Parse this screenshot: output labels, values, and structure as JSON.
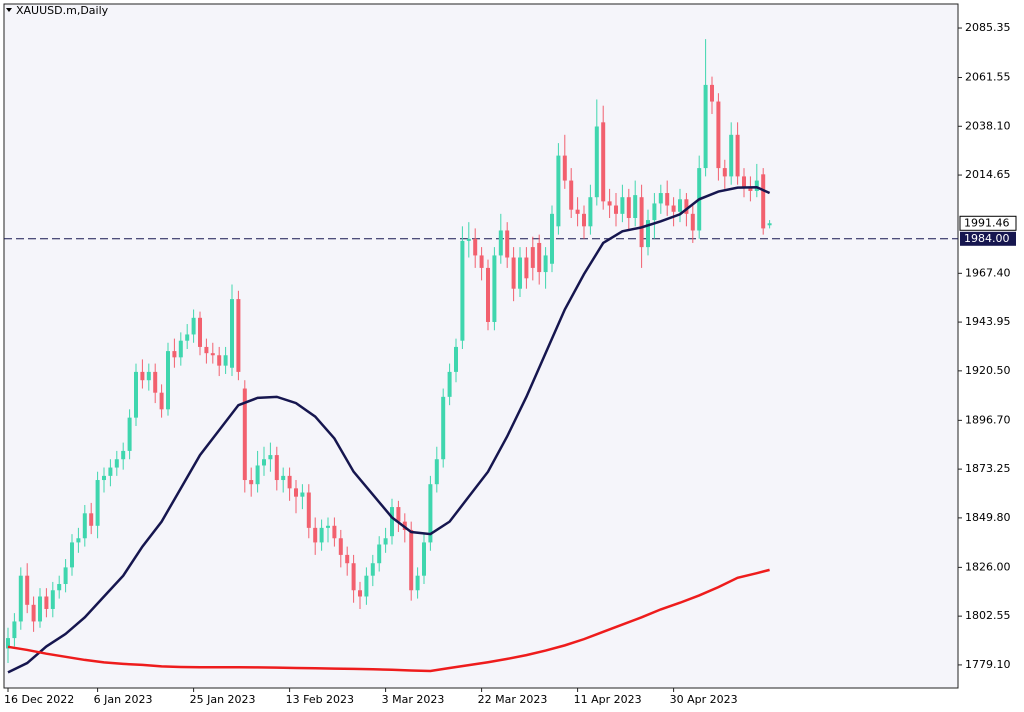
{
  "chart_data": {
    "type": "candlestick",
    "title": "XAUUSD.m,Daily",
    "categories": [
      "16 Dec 2022",
      null,
      null,
      null,
      null,
      null,
      null,
      null,
      null,
      null,
      null,
      null,
      null,
      null,
      "6 Jan 2023",
      null,
      null,
      null,
      null,
      null,
      null,
      null,
      null,
      null,
      null,
      null,
      null,
      null,
      null,
      "25 Jan 2023",
      null,
      null,
      null,
      null,
      null,
      null,
      null,
      null,
      null,
      null,
      null,
      null,
      null,
      null,
      "13 Feb 2023",
      null,
      null,
      null,
      null,
      null,
      null,
      null,
      null,
      null,
      null,
      null,
      null,
      null,
      null,
      "3 Mar 2023",
      null,
      null,
      null,
      null,
      null,
      null,
      null,
      null,
      null,
      null,
      null,
      null,
      null,
      null,
      "22 Mar 2023",
      null,
      null,
      null,
      null,
      null,
      null,
      null,
      null,
      null,
      null,
      null,
      null,
      null,
      null,
      "11 Apr 2023",
      null,
      null,
      null,
      null,
      null,
      null,
      null,
      null,
      null,
      null,
      null,
      null,
      null,
      null,
      "30 Apr 2023",
      null,
      null,
      null,
      null,
      null,
      null,
      null,
      null,
      null,
      null,
      null,
      null,
      null,
      null,
      null
    ],
    "ohlc": [
      [
        1787,
        1797,
        1780,
        1792
      ],
      [
        1792,
        1804,
        1788,
        1800
      ],
      [
        1800,
        1826,
        1796,
        1822
      ],
      [
        1822,
        1828,
        1804,
        1808
      ],
      [
        1808,
        1812,
        1795,
        1800
      ],
      [
        1800,
        1816,
        1797,
        1812
      ],
      [
        1812,
        1816,
        1802,
        1806
      ],
      [
        1806,
        1819,
        1802,
        1815
      ],
      [
        1815,
        1822,
        1811,
        1818
      ],
      [
        1818,
        1830,
        1814,
        1826
      ],
      [
        1826,
        1842,
        1822,
        1838
      ],
      [
        1838,
        1845,
        1833,
        1840
      ],
      [
        1840,
        1856,
        1836,
        1852
      ],
      [
        1852,
        1857,
        1842,
        1846
      ],
      [
        1846,
        1872,
        1840,
        1868
      ],
      [
        1868,
        1874,
        1862,
        1870
      ],
      [
        1870,
        1878,
        1865,
        1874
      ],
      [
        1874,
        1882,
        1870,
        1878
      ],
      [
        1878,
        1886,
        1873,
        1882
      ],
      [
        1882,
        1902,
        1878,
        1898
      ],
      [
        1898,
        1924,
        1894,
        1920
      ],
      [
        1920,
        1926,
        1912,
        1916
      ],
      [
        1916,
        1924,
        1911,
        1920
      ],
      [
        1920,
        1924,
        1905,
        1910
      ],
      [
        1910,
        1914,
        1898,
        1902
      ],
      [
        1902,
        1934,
        1899,
        1930
      ],
      [
        1930,
        1936,
        1922,
        1927
      ],
      [
        1927,
        1939,
        1923,
        1935
      ],
      [
        1935,
        1943,
        1931,
        1938
      ],
      [
        1938,
        1950,
        1934,
        1946
      ],
      [
        1946,
        1949,
        1928,
        1932
      ],
      [
        1932,
        1936,
        1924,
        1929
      ],
      [
        1929,
        1934,
        1924,
        1928
      ],
      [
        1928,
        1932,
        1918,
        1923
      ],
      [
        1923,
        1932,
        1919,
        1928
      ],
      [
        1922,
        1962,
        1918,
        1955
      ],
      [
        1955,
        1959,
        1916,
        1920
      ],
      [
        1912,
        1916,
        1862,
        1868
      ],
      [
        1868,
        1874,
        1860,
        1866
      ],
      [
        1866,
        1882,
        1862,
        1875
      ],
      [
        1875,
        1884,
        1870,
        1878
      ],
      [
        1878,
        1886,
        1872,
        1880
      ],
      [
        1880,
        1884,
        1863,
        1868
      ],
      [
        1868,
        1874,
        1862,
        1870
      ],
      [
        1870,
        1874,
        1858,
        1864
      ],
      [
        1864,
        1868,
        1852,
        1860
      ],
      [
        1860,
        1866,
        1854,
        1862
      ],
      [
        1862,
        1866,
        1840,
        1845
      ],
      [
        1845,
        1850,
        1832,
        1838
      ],
      [
        1838,
        1849,
        1834,
        1845
      ],
      [
        1845,
        1850,
        1838,
        1846
      ],
      [
        1846,
        1850,
        1836,
        1840
      ],
      [
        1840,
        1844,
        1826,
        1832
      ],
      [
        1832,
        1836,
        1822,
        1828
      ],
      [
        1828,
        1832,
        1809,
        1815
      ],
      [
        1815,
        1819,
        1806,
        1812
      ],
      [
        1812,
        1826,
        1808,
        1822
      ],
      [
        1822,
        1832,
        1817,
        1828
      ],
      [
        1828,
        1841,
        1824,
        1837
      ],
      [
        1837,
        1845,
        1833,
        1840
      ],
      [
        1841,
        1859,
        1837,
        1855
      ],
      [
        1855,
        1858,
        1843,
        1848
      ],
      [
        1848,
        1852,
        1838,
        1844
      ],
      [
        1844,
        1848,
        1810,
        1815
      ],
      [
        1815,
        1826,
        1811,
        1822
      ],
      [
        1822,
        1842,
        1818,
        1838
      ],
      [
        1838,
        1870,
        1834,
        1866
      ],
      [
        1866,
        1884,
        1862,
        1878
      ],
      [
        1878,
        1912,
        1874,
        1908
      ],
      [
        1908,
        1924,
        1904,
        1920
      ],
      [
        1920,
        1936,
        1915,
        1932
      ],
      [
        1935,
        1990,
        1931,
        1983
      ],
      [
        1983,
        1992,
        1975,
        1984
      ],
      [
        1984,
        1989,
        1970,
        1976
      ],
      [
        1976,
        1980,
        1964,
        1970
      ],
      [
        1970,
        1974,
        1940,
        1944
      ],
      [
        1944,
        1980,
        1940,
        1976
      ],
      [
        1976,
        1996,
        1972,
        1988
      ],
      [
        1988,
        1992,
        1970,
        1975
      ],
      [
        1975,
        1980,
        1954,
        1960
      ],
      [
        1960,
        1980,
        1956,
        1975
      ],
      [
        1975,
        1980,
        1960,
        1965
      ],
      [
        1980,
        1985,
        1964,
        1970
      ],
      [
        1982,
        1986,
        1962,
        1968
      ],
      [
        1968,
        1980,
        1960,
        1976
      ],
      [
        1972,
        2000,
        1968,
        1996
      ],
      [
        1990,
        2030,
        1986,
        2024
      ],
      [
        2024,
        2034,
        2008,
        2012
      ],
      [
        2012,
        2018,
        1994,
        1998
      ],
      [
        1998,
        2004,
        1990,
        1996
      ],
      [
        1996,
        2000,
        1984,
        1990
      ],
      [
        1990,
        2010,
        1986,
        2004
      ],
      [
        2004,
        2051,
        2000,
        2038
      ],
      [
        2040,
        2048,
        1998,
        2002
      ],
      [
        2002,
        2008,
        1994,
        2000
      ],
      [
        2000,
        2006,
        1990,
        1996
      ],
      [
        1996,
        2010,
        1992,
        2004
      ],
      [
        2004,
        2008,
        1988,
        1994
      ],
      [
        1994,
        2012,
        1990,
        2005
      ],
      [
        2004,
        2010,
        1970,
        1980
      ],
      [
        1980,
        1998,
        1976,
        1993
      ],
      [
        1993,
        2006,
        1984,
        2001
      ],
      [
        2001,
        2010,
        1996,
        2006
      ],
      [
        2006,
        2012,
        1995,
        2000
      ],
      [
        2000,
        2004,
        1990,
        1997
      ],
      [
        1997,
        2008,
        1992,
        2003
      ],
      [
        2003,
        2006,
        1990,
        1996
      ],
      [
        1996,
        2000,
        1982,
        1988
      ],
      [
        1988,
        2024,
        1984,
        2018
      ],
      [
        2018,
        2080,
        2014,
        2058
      ],
      [
        2058,
        2062,
        2044,
        2050
      ],
      [
        2050,
        2054,
        2012,
        2018
      ],
      [
        2018,
        2022,
        2008,
        2014
      ],
      [
        2014,
        2040,
        2010,
        2034
      ],
      [
        2034,
        2040,
        2010,
        2014
      ],
      [
        2014,
        2018,
        2004,
        2009
      ],
      [
        2009,
        2014,
        2002,
        2007
      ],
      [
        2007,
        2020,
        2004,
        2012
      ],
      [
        2015,
        2018,
        1986,
        1989
      ],
      [
        1990.5,
        1993,
        1989,
        1991.46
      ]
    ],
    "up_color": "#3fd6ae",
    "down_color": "#f2606e",
    "ma_x": [
      0,
      3,
      6,
      9,
      12,
      15,
      18,
      21,
      24,
      27,
      30,
      33,
      36,
      39,
      42,
      45,
      48,
      51,
      54,
      57,
      60,
      63,
      66,
      69,
      72,
      75,
      78,
      81,
      84,
      87,
      90,
      93,
      96,
      99,
      102,
      105,
      108,
      111,
      114,
      117,
      119
    ],
    "moving_averages": [
      {
        "color": "#16164f",
        "values": [
          1775.5,
          1780,
          1788,
          1794,
          1802,
          1812,
          1822,
          1836,
          1848,
          1864,
          1880,
          1892,
          1904,
          1907.5,
          1908,
          1905,
          1898.5,
          1888,
          1872,
          1861,
          1850,
          1843,
          1842,
          1848,
          1860,
          1872,
          1889,
          1908,
          1929,
          1950,
          1967,
          1982,
          1987.6,
          1989.5,
          1992.4,
          1995.8,
          2003,
          2006.7,
          2008.6,
          2008.8,
          2006
        ]
      },
      {
        "color": "#ee1c1c",
        "values": [
          1787.8,
          1786.3,
          1784.5,
          1783,
          1781.5,
          1780.3,
          1779.6,
          1779.1,
          1778.4,
          1778.1,
          1778,
          1778,
          1778,
          1777.9,
          1777.8,
          1777.6,
          1777.5,
          1777.3,
          1777.2,
          1777,
          1776.8,
          1776.4,
          1776.2,
          1777.6,
          1779,
          1780.4,
          1782,
          1783.8,
          1786,
          1788.5,
          1791.5,
          1795,
          1798.5,
          1802,
          1805.8,
          1809,
          1812.5,
          1816.5,
          1821,
          1823.2,
          1824.8
        ]
      }
    ],
    "hline": {
      "value": 1984,
      "label": "1984.00",
      "color": "#16164f"
    },
    "ylim": [
      1768.0,
      2096.9
    ],
    "yticks": [
      {
        "value": 1779.1,
        "label": "1779.10"
      },
      1802.55,
      {
        "value": 1826,
        "label": "1826.00"
      },
      {
        "value": 1849.8,
        "label": "1849.80"
      },
      1873.25,
      {
        "value": 1896.7,
        "label": "1896.70"
      },
      {
        "value": 1920.5,
        "label": "1920.50"
      },
      1943.95,
      {
        "value": 1967.4,
        "label": "1967.40"
      },
      2014.65,
      {
        "value": 2038.1,
        "label": "2038.10"
      },
      2061.55,
      2085.35
    ]
  }
}
